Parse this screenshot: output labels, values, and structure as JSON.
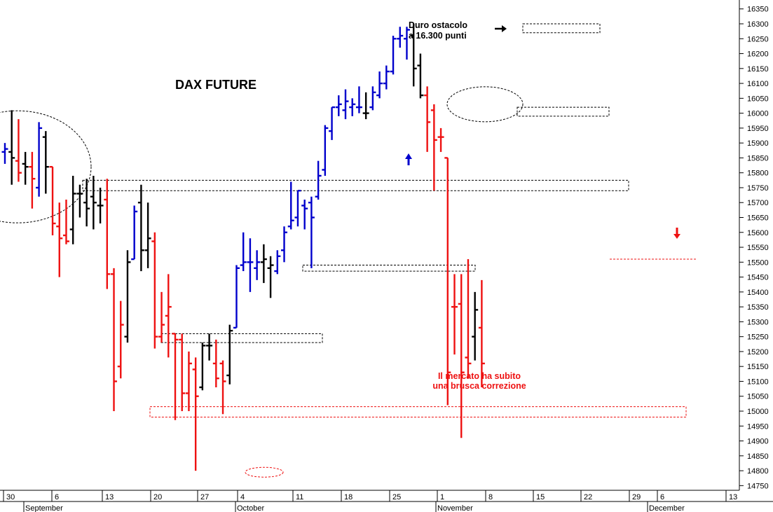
{
  "chart_data": {
    "type": "ohlc",
    "title": "DAX FUTURE",
    "ylim": [
      14725,
      16375
    ],
    "y_ticks": [
      14750,
      14800,
      14850,
      14900,
      14950,
      15000,
      15050,
      15100,
      15150,
      15200,
      15250,
      15300,
      15350,
      15400,
      15450,
      15500,
      15550,
      15600,
      15650,
      15700,
      15750,
      15800,
      15850,
      15900,
      15950,
      16000,
      16050,
      16100,
      16150,
      16200,
      16250,
      16300,
      16350
    ],
    "x_tick_labels": [
      "30",
      "6",
      "13",
      "20",
      "27",
      "4",
      "11",
      "18",
      "25",
      "1",
      "8",
      "15",
      "22",
      "29",
      "6",
      "13"
    ],
    "month_labels": [
      "September",
      "October",
      "November",
      "December"
    ],
    "annotations": {
      "top": [
        "Duro ostacolo",
        "a 16.300 punti"
      ],
      "bottom": [
        "Il mercato ha subito",
        "una brusca correzione"
      ]
    },
    "colors": {
      "up": "#0000cc",
      "down": "#ee1111",
      "neutral": "#000000",
      "note_red": "#ee1111"
    },
    "series": [
      {
        "date": "08-27",
        "open": 15870,
        "high": 15900,
        "low": 15830,
        "close": 15880,
        "color": "blue"
      },
      {
        "date": "08-30",
        "open": 15870,
        "high": 16010,
        "low": 15760,
        "close": 15850,
        "color": "black"
      },
      {
        "date": "08-31",
        "open": 15840,
        "high": 15980,
        "low": 15770,
        "close": 15800,
        "color": "red"
      },
      {
        "date": "09-01",
        "open": 15830,
        "high": 15870,
        "low": 15760,
        "close": 15820,
        "color": "black"
      },
      {
        "date": "09-02",
        "open": 15820,
        "high": 15870,
        "low": 15680,
        "close": 15780,
        "color": "red"
      },
      {
        "date": "09-03",
        "open": 15750,
        "high": 15970,
        "low": 15720,
        "close": 15950,
        "color": "blue"
      },
      {
        "date": "09-06",
        "open": 15920,
        "high": 15940,
        "low": 15730,
        "close": 15820,
        "color": "black"
      },
      {
        "date": "09-07",
        "open": 15820,
        "high": 15820,
        "low": 15590,
        "close": 15630,
        "color": "red"
      },
      {
        "date": "09-08",
        "open": 15620,
        "high": 15700,
        "low": 15450,
        "close": 15580,
        "color": "red"
      },
      {
        "date": "09-09",
        "open": 15590,
        "high": 15710,
        "low": 15560,
        "close": 15570,
        "color": "red"
      },
      {
        "date": "09-10",
        "open": 15610,
        "high": 15790,
        "low": 15560,
        "close": 15730,
        "color": "black"
      },
      {
        "date": "09-13",
        "open": 15730,
        "high": 15760,
        "low": 15650,
        "close": 15730,
        "color": "black"
      },
      {
        "date": "09-14",
        "open": 15700,
        "high": 15780,
        "low": 15620,
        "close": 15680,
        "color": "black"
      },
      {
        "date": "09-15",
        "open": 15720,
        "high": 15790,
        "low": 15610,
        "close": 15700,
        "color": "black"
      },
      {
        "date": "09-16",
        "open": 15690,
        "high": 15750,
        "low": 15630,
        "close": 15690,
        "color": "black"
      },
      {
        "date": "09-17",
        "open": 15710,
        "high": 15780,
        "low": 15410,
        "close": 15460,
        "color": "red"
      },
      {
        "date": "09-20",
        "open": 15460,
        "high": 15480,
        "low": 15000,
        "close": 15100,
        "color": "red"
      },
      {
        "date": "09-21",
        "open": 15150,
        "high": 15370,
        "low": 15110,
        "close": 15290,
        "color": "red"
      },
      {
        "date": "09-22",
        "open": 15250,
        "high": 15540,
        "low": 15230,
        "close": 15500,
        "color": "black"
      },
      {
        "date": "09-23",
        "open": 15510,
        "high": 15690,
        "low": 15510,
        "close": 15670,
        "color": "blue"
      },
      {
        "date": "09-24",
        "open": 15700,
        "high": 15760,
        "low": 15470,
        "close": 15540,
        "color": "black"
      },
      {
        "date": "09-27",
        "open": 15540,
        "high": 15700,
        "low": 15480,
        "close": 15580,
        "color": "black"
      },
      {
        "date": "09-28",
        "open": 15570,
        "high": 15600,
        "low": 15210,
        "close": 15250,
        "color": "red"
      },
      {
        "date": "09-29",
        "open": 15250,
        "high": 15400,
        "low": 15230,
        "close": 15290,
        "color": "red"
      },
      {
        "date": "09-30",
        "open": 15320,
        "high": 15460,
        "low": 15180,
        "close": 15350,
        "color": "red"
      },
      {
        "date": "10-01",
        "open": 15260,
        "high": 15260,
        "low": 14970,
        "close": 15240,
        "color": "red"
      },
      {
        "date": "10-04",
        "open": 15240,
        "high": 15260,
        "low": 15000,
        "close": 15060,
        "color": "red"
      },
      {
        "date": "10-05",
        "open": 15060,
        "high": 15200,
        "low": 15000,
        "close": 15160,
        "color": "red"
      },
      {
        "date": "10-06",
        "open": 15140,
        "high": 15180,
        "low": 14800,
        "close": 15050,
        "color": "red"
      },
      {
        "date": "10-07",
        "open": 15080,
        "high": 15230,
        "low": 15070,
        "close": 15220,
        "color": "black"
      },
      {
        "date": "10-08",
        "open": 15220,
        "high": 15260,
        "low": 15170,
        "close": 15220,
        "color": "black"
      },
      {
        "date": "10-11",
        "open": 15160,
        "high": 15240,
        "low": 15080,
        "close": 15110,
        "color": "red"
      },
      {
        "date": "10-12",
        "open": 15160,
        "high": 15170,
        "low": 14990,
        "close": 15100,
        "color": "red"
      },
      {
        "date": "10-13",
        "open": 15120,
        "high": 15290,
        "low": 15090,
        "close": 15270,
        "color": "black"
      },
      {
        "date": "10-14",
        "open": 15280,
        "high": 15490,
        "low": 15280,
        "close": 15480,
        "color": "blue"
      },
      {
        "date": "10-15",
        "open": 15490,
        "high": 15600,
        "low": 15470,
        "close": 15500,
        "color": "blue"
      },
      {
        "date": "10-18",
        "open": 15500,
        "high": 15580,
        "low": 15400,
        "close": 15500,
        "color": "blue"
      },
      {
        "date": "10-19",
        "open": 15480,
        "high": 15540,
        "low": 15440,
        "close": 15500,
        "color": "blue"
      },
      {
        "date": "10-20",
        "open": 15500,
        "high": 15560,
        "low": 15430,
        "close": 15510,
        "color": "black"
      },
      {
        "date": "10-21",
        "open": 15480,
        "high": 15520,
        "low": 15380,
        "close": 15490,
        "color": "black"
      },
      {
        "date": "10-22",
        "open": 15470,
        "high": 15540,
        "low": 15460,
        "close": 15520,
        "color": "blue"
      },
      {
        "date": "10-25",
        "open": 15540,
        "high": 15620,
        "low": 15500,
        "close": 15600,
        "color": "blue"
      },
      {
        "date": "10-26",
        "open": 15620,
        "high": 15770,
        "low": 15610,
        "close": 15640,
        "color": "blue"
      },
      {
        "date": "10-27",
        "open": 15650,
        "high": 15740,
        "low": 15620,
        "close": 15740,
        "color": "blue"
      },
      {
        "date": "10-28",
        "open": 15690,
        "high": 15710,
        "low": 15610,
        "close": 15680,
        "color": "blue"
      },
      {
        "date": "10-29",
        "open": 15700,
        "high": 15720,
        "low": 15480,
        "close": 15650,
        "color": "blue"
      },
      {
        "date": "11-01",
        "open": 15720,
        "high": 15840,
        "low": 15710,
        "close": 15790,
        "color": "blue"
      },
      {
        "date": "11-02",
        "open": 15810,
        "high": 15960,
        "low": 15790,
        "close": 15950,
        "color": "blue"
      },
      {
        "date": "11-03",
        "open": 15940,
        "high": 16020,
        "low": 15910,
        "close": 16020,
        "color": "blue"
      },
      {
        "date": "11-04",
        "open": 16020,
        "high": 16060,
        "low": 15990,
        "close": 16030,
        "color": "blue"
      },
      {
        "date": "11-05",
        "open": 16010,
        "high": 16080,
        "low": 15980,
        "close": 16040,
        "color": "blue"
      },
      {
        "date": "11-08",
        "open": 16020,
        "high": 16050,
        "low": 15990,
        "close": 16030,
        "color": "blue"
      },
      {
        "date": "11-09",
        "open": 16020,
        "high": 16090,
        "low": 16000,
        "close": 16020,
        "color": "blue"
      },
      {
        "date": "11-10",
        "open": 16000,
        "high": 16070,
        "low": 15980,
        "close": 16000,
        "color": "black"
      },
      {
        "date": "11-11",
        "open": 16020,
        "high": 16090,
        "low": 16010,
        "close": 16070,
        "color": "blue"
      },
      {
        "date": "11-12",
        "open": 16060,
        "high": 16140,
        "low": 16050,
        "close": 16100,
        "color": "blue"
      },
      {
        "date": "11-15",
        "open": 16100,
        "high": 16160,
        "low": 16080,
        "close": 16140,
        "color": "blue"
      },
      {
        "date": "11-16",
        "open": 16140,
        "high": 16260,
        "low": 16130,
        "close": 16250,
        "color": "blue"
      },
      {
        "date": "11-17",
        "open": 16250,
        "high": 16290,
        "low": 16220,
        "close": 16260,
        "color": "blue"
      },
      {
        "date": "11-18",
        "open": 16250,
        "high": 16290,
        "low": 16180,
        "close": 16280,
        "color": "blue"
      },
      {
        "date": "11-19",
        "open": 16260,
        "high": 16300,
        "low": 16090,
        "close": 16150,
        "color": "black"
      },
      {
        "date": "11-22",
        "open": 16160,
        "high": 16200,
        "low": 16050,
        "close": 16060,
        "color": "black"
      },
      {
        "date": "11-23",
        "open": 16060,
        "high": 16090,
        "low": 15870,
        "close": 15970,
        "color": "red"
      },
      {
        "date": "11-24",
        "open": 16010,
        "high": 16030,
        "low": 15740,
        "close": 15910,
        "color": "red"
      },
      {
        "date": "11-25",
        "open": 15920,
        "high": 15950,
        "low": 15870,
        "close": 15920,
        "color": "red"
      },
      {
        "date": "11-26",
        "open": 15850,
        "high": 15850,
        "low": 15020,
        "close": 15130,
        "color": "red"
      },
      {
        "date": "11-29",
        "open": 15350,
        "high": 15460,
        "low": 15190,
        "close": 15350,
        "color": "red"
      },
      {
        "date": "11-30",
        "open": 15360,
        "high": 15460,
        "low": 14910,
        "close": 15130,
        "color": "red"
      },
      {
        "date": "12-01",
        "open": 15180,
        "high": 15510,
        "low": 15110,
        "close": 15160,
        "color": "red"
      },
      {
        "date": "12-02",
        "open": 15250,
        "high": 15400,
        "low": 15170,
        "close": 15340,
        "color": "black"
      },
      {
        "date": "12-03",
        "open": 15280,
        "high": 15440,
        "low": 15080,
        "close": 15160,
        "color": "red"
      }
    ]
  }
}
